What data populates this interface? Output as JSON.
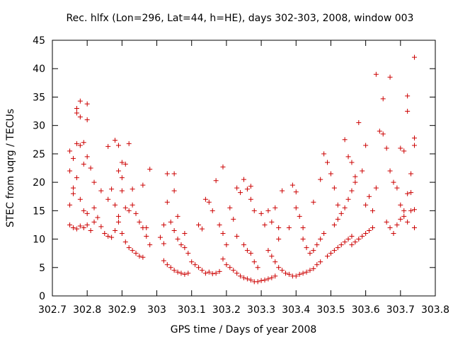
{
  "chart_data": {
    "type": "scatter",
    "title": "Rec. hlfx (Lon=296, Lat=44, h=HE), days 302-303, 2008, window 003",
    "xlabel": "GPS time / Days of year 2008",
    "ylabel": "STEC from uqrg / TECUs",
    "xlim": [
      302.7,
      303.8
    ],
    "ylim": [
      0,
      45
    ],
    "xticks": [
      "302.7",
      "302.8",
      "302.9",
      "303",
      "303.1",
      "303.2",
      "303.3",
      "303.4",
      "303.5",
      "303.6",
      "303.7",
      "303.8"
    ],
    "yticks": [
      "0",
      "5",
      "10",
      "15",
      "20",
      "25",
      "30",
      "35",
      "40",
      "45"
    ],
    "grid": false,
    "legend": "none",
    "marker": "plus",
    "color": "#cc0000",
    "series": [
      {
        "points": [
          [
            302.75,
            25.5
          ],
          [
            302.76,
            24.2
          ],
          [
            302.77,
            26.8
          ],
          [
            302.78,
            26.5
          ],
          [
            302.79,
            27.0
          ],
          [
            302.77,
            33.0
          ],
          [
            302.77,
            32.2
          ],
          [
            302.78,
            31.5
          ],
          [
            302.78,
            34.3
          ],
          [
            302.8,
            33.8
          ],
          [
            302.8,
            31.0
          ],
          [
            302.75,
            22.0
          ],
          [
            302.76,
            19.0
          ],
          [
            302.77,
            20.8
          ],
          [
            302.79,
            23.2
          ],
          [
            302.8,
            24.5
          ],
          [
            302.81,
            22.5
          ],
          [
            302.75,
            16.0
          ],
          [
            302.76,
            18.0
          ],
          [
            302.78,
            17.0
          ],
          [
            302.79,
            15.0
          ],
          [
            302.8,
            14.5
          ],
          [
            302.82,
            13.0
          ],
          [
            302.75,
            12.5
          ],
          [
            302.76,
            12.0
          ],
          [
            302.77,
            11.8
          ],
          [
            302.78,
            12.3
          ],
          [
            302.79,
            12.0
          ],
          [
            302.8,
            12.5
          ],
          [
            302.81,
            11.5
          ],
          [
            302.82,
            15.5
          ],
          [
            302.83,
            13.8
          ],
          [
            302.84,
            12.2
          ],
          [
            302.85,
            11.0
          ],
          [
            302.86,
            10.5
          ],
          [
            302.87,
            10.3
          ],
          [
            302.88,
            11.5
          ],
          [
            302.82,
            20.0
          ],
          [
            302.84,
            18.5
          ],
          [
            302.86,
            17.0
          ],
          [
            302.87,
            18.8
          ],
          [
            302.88,
            16.0
          ],
          [
            302.89,
            14.0
          ],
          [
            302.86,
            26.3
          ],
          [
            302.88,
            27.4
          ],
          [
            302.89,
            26.5
          ],
          [
            302.9,
            23.5
          ],
          [
            302.91,
            23.2
          ],
          [
            302.89,
            22.0
          ],
          [
            302.9,
            20.8
          ],
          [
            302.89,
            13.0
          ],
          [
            302.9,
            11.0
          ],
          [
            302.91,
            9.5
          ],
          [
            302.92,
            8.5
          ],
          [
            302.93,
            8.0
          ],
          [
            302.94,
            7.5
          ],
          [
            302.95,
            7.0
          ],
          [
            302.96,
            6.8
          ],
          [
            302.9,
            18.5
          ],
          [
            302.91,
            15.5
          ],
          [
            302.92,
            15.0
          ],
          [
            302.93,
            16.0
          ],
          [
            302.94,
            14.5
          ],
          [
            302.95,
            13.0
          ],
          [
            302.96,
            12.0
          ],
          [
            302.92,
            26.8
          ],
          [
            302.93,
            18.8
          ],
          [
            302.96,
            19.5
          ],
          [
            302.98,
            22.3
          ],
          [
            302.97,
            12.0
          ],
          [
            302.98,
            9.0
          ],
          [
            302.97,
            10.5
          ],
          [
            303.01,
            10.3
          ],
          [
            303.02,
            9.2
          ],
          [
            303.02,
            12.5
          ],
          [
            303.03,
            16.5
          ],
          [
            303.03,
            21.5
          ],
          [
            303.05,
            21.5
          ],
          [
            303.05,
            18.5
          ],
          [
            303.02,
            6.2
          ],
          [
            303.03,
            5.5
          ],
          [
            303.04,
            5.0
          ],
          [
            303.05,
            4.5
          ],
          [
            303.06,
            4.2
          ],
          [
            303.07,
            4.0
          ],
          [
            303.08,
            3.8
          ],
          [
            303.09,
            4.0
          ],
          [
            303.04,
            13.0
          ],
          [
            303.05,
            11.5
          ],
          [
            303.06,
            10.0
          ],
          [
            303.07,
            9.0
          ],
          [
            303.08,
            8.5
          ],
          [
            303.09,
            7.5
          ],
          [
            303.1,
            6.0
          ],
          [
            303.11,
            5.5
          ],
          [
            303.12,
            5.0
          ],
          [
            303.13,
            4.5
          ],
          [
            303.14,
            4.0
          ],
          [
            303.15,
            4.2
          ],
          [
            303.16,
            3.9
          ],
          [
            303.17,
            4.0
          ],
          [
            303.18,
            4.3
          ],
          [
            303.06,
            14.0
          ],
          [
            303.08,
            11.0
          ],
          [
            303.12,
            12.5
          ],
          [
            303.13,
            11.8
          ],
          [
            303.14,
            17.0
          ],
          [
            303.15,
            16.5
          ],
          [
            303.16,
            15.0
          ],
          [
            303.17,
            20.3
          ],
          [
            303.19,
            22.7
          ],
          [
            303.18,
            12.5
          ],
          [
            303.19,
            11.0
          ],
          [
            303.2,
            9.0
          ],
          [
            303.21,
            15.5
          ],
          [
            303.22,
            13.5
          ],
          [
            303.19,
            6.5
          ],
          [
            303.2,
            5.5
          ],
          [
            303.21,
            5.0
          ],
          [
            303.22,
            4.5
          ],
          [
            303.23,
            4.0
          ],
          [
            303.24,
            3.5
          ],
          [
            303.25,
            3.2
          ],
          [
            303.26,
            3.0
          ],
          [
            303.23,
            19.0
          ],
          [
            303.24,
            18.2
          ],
          [
            303.25,
            20.5
          ],
          [
            303.26,
            18.8
          ],
          [
            303.27,
            19.3
          ],
          [
            303.27,
            17.0
          ],
          [
            303.28,
            15.0
          ],
          [
            303.23,
            10.5
          ],
          [
            303.25,
            9.0
          ],
          [
            303.26,
            8.0
          ],
          [
            303.27,
            7.5
          ],
          [
            303.28,
            6.0
          ],
          [
            303.29,
            5.0
          ],
          [
            303.27,
            2.8
          ],
          [
            303.28,
            2.5
          ],
          [
            303.29,
            2.5
          ],
          [
            303.3,
            2.7
          ],
          [
            303.31,
            2.8
          ],
          [
            303.32,
            3.0
          ],
          [
            303.33,
            3.2
          ],
          [
            303.34,
            3.5
          ],
          [
            303.3,
            14.5
          ],
          [
            303.31,
            12.5
          ],
          [
            303.32,
            15.0
          ],
          [
            303.33,
            13.0
          ],
          [
            303.34,
            15.5
          ],
          [
            303.35,
            12.0
          ],
          [
            303.35,
            10.0
          ],
          [
            303.32,
            8.0
          ],
          [
            303.33,
            7.0
          ],
          [
            303.34,
            6.0
          ],
          [
            303.35,
            5.0
          ],
          [
            303.36,
            4.5
          ],
          [
            303.37,
            4.0
          ],
          [
            303.38,
            3.8
          ],
          [
            303.39,
            3.5
          ],
          [
            303.36,
            18.5
          ],
          [
            303.38,
            12.0
          ],
          [
            303.39,
            19.5
          ],
          [
            303.4,
            18.3
          ],
          [
            303.4,
            15.5
          ],
          [
            303.41,
            14.0
          ],
          [
            303.42,
            12.0
          ],
          [
            303.4,
            3.5
          ],
          [
            303.41,
            3.8
          ],
          [
            303.42,
            4.0
          ],
          [
            303.43,
            4.2
          ],
          [
            303.44,
            4.5
          ],
          [
            303.45,
            4.8
          ],
          [
            303.46,
            5.5
          ],
          [
            303.47,
            6.0
          ],
          [
            303.42,
            10.0
          ],
          [
            303.43,
            8.5
          ],
          [
            303.44,
            7.5
          ],
          [
            303.45,
            8.0
          ],
          [
            303.46,
            9.0
          ],
          [
            303.47,
            10.0
          ],
          [
            303.48,
            11.0
          ],
          [
            303.45,
            16.5
          ],
          [
            303.47,
            20.5
          ],
          [
            303.48,
            25.0
          ],
          [
            303.49,
            23.5
          ],
          [
            303.5,
            21.5
          ],
          [
            303.51,
            19.0
          ],
          [
            303.52,
            16.0
          ],
          [
            303.49,
            7.0
          ],
          [
            303.5,
            7.5
          ],
          [
            303.51,
            8.0
          ],
          [
            303.52,
            8.5
          ],
          [
            303.53,
            9.0
          ],
          [
            303.54,
            9.5
          ],
          [
            303.55,
            10.0
          ],
          [
            303.56,
            10.5
          ],
          [
            303.51,
            12.5
          ],
          [
            303.52,
            13.5
          ],
          [
            303.53,
            14.5
          ],
          [
            303.54,
            15.5
          ],
          [
            303.55,
            17.0
          ],
          [
            303.56,
            18.5
          ],
          [
            303.57,
            20.0
          ],
          [
            303.54,
            27.5
          ],
          [
            303.55,
            24.5
          ],
          [
            303.56,
            23.5
          ],
          [
            303.57,
            21.0
          ],
          [
            303.58,
            30.5
          ],
          [
            303.59,
            22.0
          ],
          [
            303.6,
            26.5
          ],
          [
            303.56,
            9.0
          ],
          [
            303.57,
            9.5
          ],
          [
            303.58,
            10.0
          ],
          [
            303.59,
            10.5
          ],
          [
            303.6,
            11.0
          ],
          [
            303.61,
            11.5
          ],
          [
            303.62,
            12.0
          ],
          [
            303.6,
            16.0
          ],
          [
            303.61,
            17.5
          ],
          [
            303.62,
            15.0
          ],
          [
            303.63,
            19.0
          ],
          [
            303.64,
            29.0
          ],
          [
            303.65,
            28.5
          ],
          [
            303.66,
            26.0
          ],
          [
            303.63,
            39.0
          ],
          [
            303.65,
            34.7
          ],
          [
            303.67,
            38.5
          ],
          [
            303.66,
            13.0
          ],
          [
            303.67,
            12.0
          ],
          [
            303.68,
            11.0
          ],
          [
            303.69,
            12.5
          ],
          [
            303.67,
            22.0
          ],
          [
            303.68,
            20.0
          ],
          [
            303.69,
            19.0
          ],
          [
            303.7,
            26.0
          ],
          [
            303.71,
            25.5
          ],
          [
            303.72,
            35.2
          ],
          [
            303.72,
            32.5
          ],
          [
            303.7,
            16.0
          ],
          [
            303.71,
            15.0
          ],
          [
            303.72,
            18.0
          ],
          [
            303.73,
            18.2
          ],
          [
            303.73,
            21.5
          ],
          [
            303.74,
            27.8
          ],
          [
            303.74,
            26.5
          ],
          [
            303.7,
            13.5
          ],
          [
            303.71,
            14.0
          ],
          [
            303.72,
            13.0
          ],
          [
            303.73,
            15.0
          ],
          [
            303.74,
            15.2
          ],
          [
            303.74,
            12.0
          ],
          [
            303.74,
            42.0
          ]
        ]
      }
    ]
  }
}
